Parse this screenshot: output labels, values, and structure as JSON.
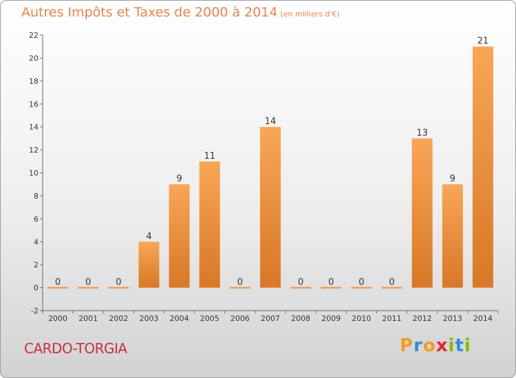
{
  "header": {
    "title": "Autres Impôts et Taxes de 2000 à 2014",
    "unit": "(en milliers d'€)"
  },
  "footer": {
    "commune": "CARDO-TORGIA",
    "logo": "Proxiti"
  },
  "colors": {
    "bar_top": "#f8a656",
    "bar_bottom": "#d87826",
    "title": "#e8844a",
    "commune": "#c8323c",
    "logo_letters": [
      "#f59b1f",
      "#2f8fd6",
      "#f59b1f",
      "#e8232e",
      "#8ab800",
      "#2f8fd6",
      "#8ab800"
    ]
  },
  "chart_data": {
    "type": "bar",
    "title": "Autres Impôts et Taxes de 2000 à 2014",
    "subtitle": "(en milliers d'€)",
    "xlabel": "",
    "ylabel": "",
    "categories": [
      "2000",
      "2001",
      "2002",
      "2003",
      "2004",
      "2005",
      "2006",
      "2007",
      "2008",
      "2009",
      "2010",
      "2011",
      "2012",
      "2013",
      "2014"
    ],
    "values": [
      0,
      0,
      0,
      4,
      9,
      11,
      0,
      14,
      0,
      0,
      0,
      0,
      13,
      9,
      21
    ],
    "ylim": [
      -2,
      22
    ],
    "yticks": [
      -2,
      0,
      2,
      4,
      6,
      8,
      10,
      12,
      14,
      16,
      18,
      20,
      22
    ],
    "grid": false,
    "legend": "none"
  }
}
